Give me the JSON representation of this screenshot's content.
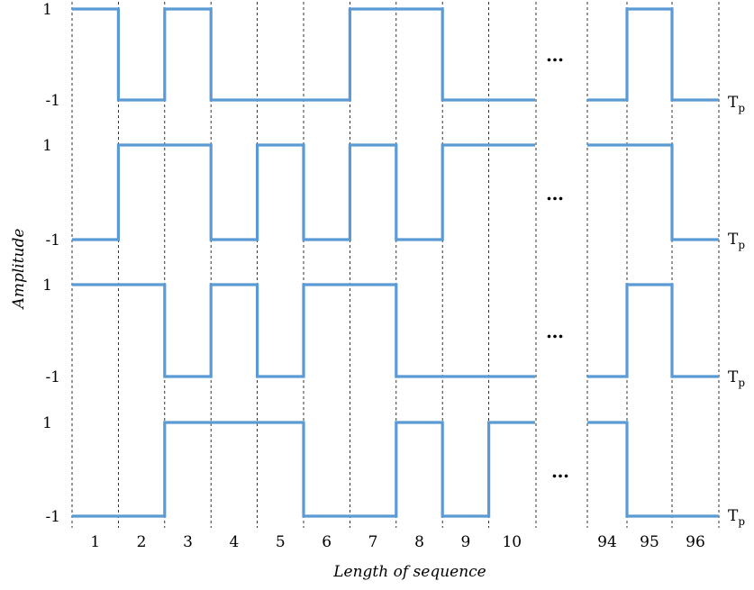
{
  "chart_data": {
    "type": "line",
    "title": "",
    "xlabel": "Length of sequence",
    "ylabel": "Amplitude",
    "y_ticks": [
      "1",
      "-1"
    ],
    "x_ticks": [
      "1",
      "2",
      "3",
      "4",
      "5",
      "6",
      "7",
      "8",
      "9",
      "10",
      "94",
      "95",
      "96"
    ],
    "ellipsis": "…",
    "period_label": {
      "base": "T",
      "sub": "p"
    },
    "grid": "vertical-dashed",
    "series": [
      {
        "values_1_10": [
          1,
          -1,
          1,
          -1,
          -1,
          -1,
          1,
          1,
          -1,
          -1
        ],
        "values_94_96": [
          -1,
          1,
          -1
        ]
      },
      {
        "values_1_10": [
          -1,
          1,
          1,
          -1,
          1,
          -1,
          1,
          -1,
          1,
          1
        ],
        "values_94_96": [
          1,
          1,
          -1
        ]
      },
      {
        "values_1_10": [
          1,
          1,
          -1,
          1,
          -1,
          1,
          1,
          -1,
          -1,
          -1
        ],
        "values_94_96": [
          -1,
          1,
          -1
        ]
      },
      {
        "values_1_10": [
          -1,
          -1,
          1,
          1,
          1,
          -1,
          -1,
          1,
          -1,
          1
        ],
        "values_94_96": [
          1,
          -1,
          -1
        ]
      }
    ]
  }
}
